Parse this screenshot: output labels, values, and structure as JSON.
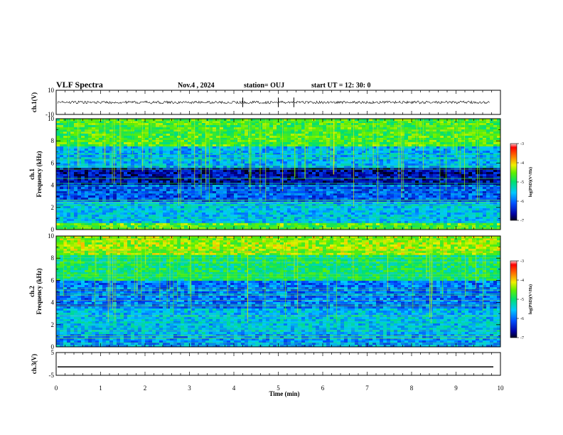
{
  "header": {
    "title": "VLF Spectra",
    "date": "Nov.4 , 2024",
    "station": "station= OUJ",
    "start_ut": "start UT = 12: 30: 0"
  },
  "chart_data": [
    {
      "type": "line",
      "panel": "waveform-ch1",
      "ylabel": "ch.1(V)",
      "ylim": [
        -10,
        10
      ],
      "yticks": [
        "10",
        "-10"
      ],
      "series": [
        {
          "values": []
        }
      ]
    },
    {
      "type": "heatmap",
      "panel": "spectrogram-ch1",
      "ylabel_line1": "ch.1",
      "ylabel_line2": "Frequency (kHz)",
      "ylim": [
        0,
        10
      ],
      "yticks": [
        "0",
        "2",
        "4",
        "6",
        "8",
        "10"
      ],
      "colorbar": {
        "label": "log(PSD)(V²/Hz)",
        "range": [
          -7,
          -3
        ],
        "ticks": [
          "-3",
          "-4",
          "-5",
          "-6",
          "-7"
        ]
      }
    },
    {
      "type": "heatmap",
      "panel": "spectrogram-ch2",
      "ylabel_line1": "ch.2",
      "ylabel_line2": "Frequency (kHz)",
      "ylim": [
        0,
        10
      ],
      "yticks": [
        "0",
        "2",
        "4",
        "6",
        "8",
        "10"
      ],
      "colorbar": {
        "label": "log(PSD)(V²/Hz)",
        "range": [
          -7,
          -3
        ],
        "ticks": [
          "-3",
          "-4",
          "-5",
          "-6",
          "-7"
        ]
      }
    },
    {
      "type": "line",
      "panel": "waveform-ch3",
      "ylabel": "ch.3(V)",
      "ylim": [
        -5,
        5
      ],
      "yticks": [
        "5",
        "-5"
      ],
      "series": [
        {
          "values": [
            -1.3,
            -1.3
          ]
        }
      ]
    }
  ],
  "x_axis": {
    "label": "Time (min)",
    "range": [
      0,
      10
    ],
    "ticks": [
      "0",
      "1",
      "2",
      "3",
      "4",
      "5",
      "6",
      "7",
      "8",
      "9",
      "10"
    ]
  }
}
